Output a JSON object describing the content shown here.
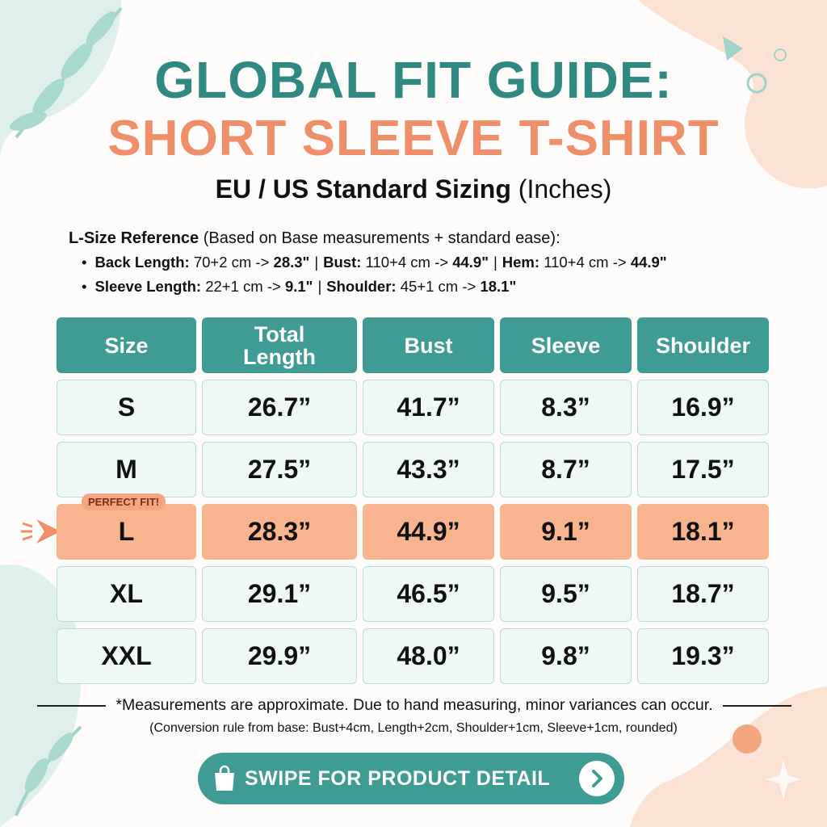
{
  "header": {
    "title": "GLOBAL FIT GUIDE:",
    "subtitle": "SHORT SLEEVE T-SHIRT",
    "standard": "EU / US Standard Sizing",
    "unit": "(Inches)"
  },
  "reference": {
    "label": "L-Size Reference",
    "note": "(Based on Base measurements + standard ease):",
    "separator": "|",
    "lines": [
      [
        {
          "label": "Back Length:",
          "calc": "70+2 cm ->",
          "result": "28.3\""
        },
        {
          "label": "Bust:",
          "calc": "110+4 cm ->",
          "result": "44.9\""
        },
        {
          "label": "Hem:",
          "calc": "110+4 cm ->",
          "result": "44.9\""
        }
      ],
      [
        {
          "label": "Sleeve Length:",
          "calc": "22+1 cm ->",
          "result": "9.1\""
        },
        {
          "label": "Shoulder:",
          "calc": "45+1 cm ->",
          "result": "18.1\""
        }
      ]
    ]
  },
  "table": {
    "columns": [
      "Size",
      "Total Length",
      "Bust",
      "Sleeve",
      "Shoulder"
    ],
    "rows": [
      {
        "cells": [
          "S",
          "26.7”",
          "41.7”",
          "8.3”",
          "16.9”"
        ]
      },
      {
        "cells": [
          "M",
          "27.5”",
          "43.3”",
          "8.7”",
          "17.5”"
        ]
      },
      {
        "cells": [
          "L",
          "28.3”",
          "44.9”",
          "9.1”",
          "18.1”"
        ],
        "badge": "PERFECT FIT!"
      },
      {
        "cells": [
          "XL",
          "29.1”",
          "46.5”",
          "9.5”",
          "18.7”"
        ]
      },
      {
        "cells": [
          "XXL",
          "29.9”",
          "48.0”",
          "9.8”",
          "19.3”"
        ]
      }
    ]
  },
  "footer": {
    "note": "*Measurements are approximate. Due to hand measuring, minor variances can occur.",
    "rule": "(Conversion rule from base: Bust+4cm, Length+2cm, Shoulder+1cm, Sleeve+1cm, rounded)",
    "button": "SWIPE FOR PRODUCT DETAIL"
  }
}
